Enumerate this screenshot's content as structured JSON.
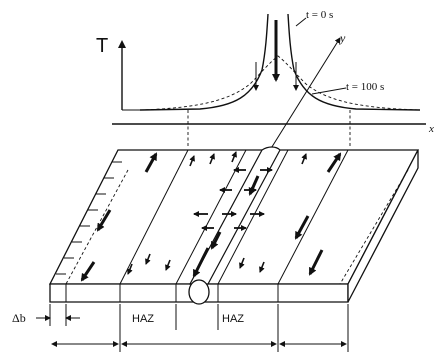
{
  "labels": {
    "temperature_axis": "T",
    "time_start": "t = 0 s",
    "time_end": "t = 100 s",
    "y_axis": "y",
    "x_axis": "x",
    "delta_b": "Δb",
    "haz_left": "HAZ",
    "haz_right": "HAZ"
  },
  "colors": {
    "ink": "#111111",
    "background": "#ffffff"
  }
}
